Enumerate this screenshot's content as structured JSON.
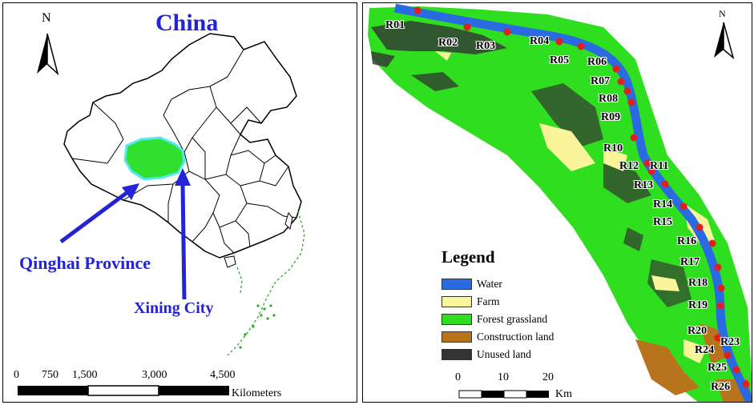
{
  "left_panel": {
    "title": "China",
    "north": "N",
    "province_label": "Qinghai Province",
    "city_label": "Xining City",
    "scale_ticks": [
      "0",
      "750",
      "1,500",
      "3,000",
      "4,500"
    ],
    "scale_units": "Kilometers",
    "colors": {
      "label_blue": "#2323d8",
      "province_fill": "#2fe02f",
      "province_outline": "#55e8f0",
      "island_green": "#27a827"
    }
  },
  "right_panel": {
    "north": "N",
    "legend": {
      "title": "Legend",
      "items": [
        {
          "label": "Water",
          "color": "#2a6be2"
        },
        {
          "label": "Farm",
          "color": "#faf59a"
        },
        {
          "label": "Forest grassland",
          "color": "#2fde1f"
        },
        {
          "label": "Construction land",
          "color": "#b8741c"
        },
        {
          "label": "Unused land",
          "color": "#333333"
        }
      ]
    },
    "sampling_points": [
      "R01",
      "R02",
      "R03",
      "R04",
      "R05",
      "R06",
      "R07",
      "R08",
      "R09",
      "R10",
      "R11",
      "R12",
      "R13",
      "R14",
      "R15",
      "R16",
      "R17",
      "R18",
      "R19",
      "R20",
      "R23",
      "R24",
      "R25",
      "R26"
    ],
    "scale_ticks": [
      "0",
      "10",
      "20"
    ],
    "scale_units": "Km",
    "point_color": "#e02020"
  }
}
